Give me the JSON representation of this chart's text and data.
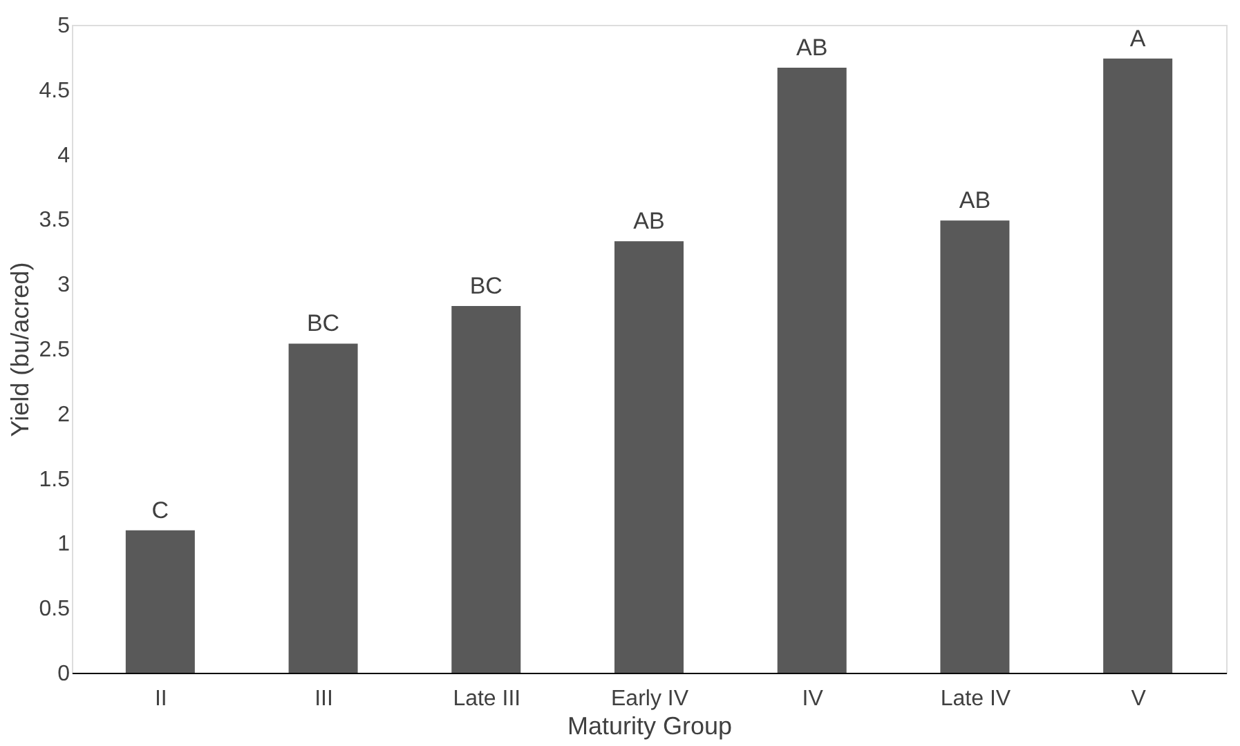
{
  "chart_data": {
    "type": "bar",
    "xlabel": "Maturity Group",
    "ylabel": "Yield (bu/acred)",
    "categories": [
      "II",
      "III",
      "Late III",
      "Early IV",
      "IV",
      "Late IV",
      "V"
    ],
    "values": [
      1.1,
      2.54,
      2.83,
      3.33,
      4.67,
      3.49,
      4.74
    ],
    "color": "#595959",
    "ylim": [
      0,
      5
    ],
    "yticks": [
      0,
      0.5,
      1,
      1.5,
      2,
      2.5,
      3,
      3.5,
      4,
      4.5,
      5
    ],
    "grid": false,
    "annotations": [
      {
        "text": "C",
        "x": "II",
        "y": 1.1
      },
      {
        "text": "BC",
        "x": "III",
        "y": 2.54
      },
      {
        "text": "BC",
        "x": "Late III",
        "y": 2.83
      },
      {
        "text": "AB",
        "x": "Early IV",
        "y": 3.33
      },
      {
        "text": "AB",
        "x": "IV",
        "y": 4.67
      },
      {
        "text": "AB",
        "x": "Late IV",
        "y": 3.49
      },
      {
        "text": "A",
        "x": "V",
        "y": 4.74
      }
    ]
  }
}
